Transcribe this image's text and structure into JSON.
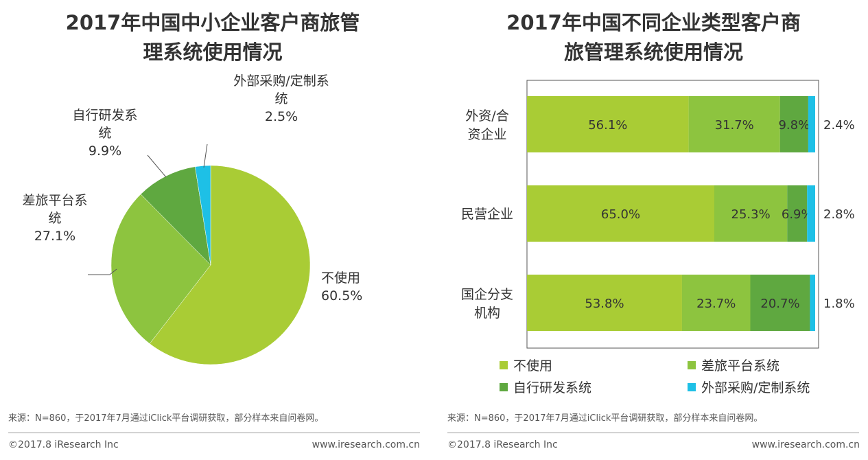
{
  "colors": {
    "not_used": "#a9cc35",
    "travel_platform": "#8dc43f",
    "self_developed": "#5fa840",
    "outsourced": "#1ec0e6"
  },
  "chart_data": [
    {
      "type": "pie",
      "title_lines": [
        "2017年中国中小企业客户商旅管",
        "理系统使用情况"
      ],
      "slices": [
        {
          "label": "不使用",
          "value": 60.5,
          "value_label": "60.5%",
          "label_lines": [
            "不使用"
          ],
          "color": "#a9cc35"
        },
        {
          "label": "差旅平台系统",
          "value": 27.1,
          "value_label": "27.1%",
          "label_lines": [
            "差旅平台系",
            "统"
          ],
          "color": "#8dc43f"
        },
        {
          "label": "自行研发系统",
          "value": 9.9,
          "value_label": "9.9%",
          "label_lines": [
            "自行研发系",
            "统"
          ],
          "color": "#5fa840"
        },
        {
          "label": "外部采购/定制系统",
          "value": 2.5,
          "value_label": "2.5%",
          "label_lines": [
            "外部采购/定制系",
            "统"
          ],
          "color": "#1ec0e6"
        }
      ]
    },
    {
      "type": "bar",
      "orientation": "horizontal",
      "stacked": true,
      "title_lines": [
        "2017年中国不同企业类型客户商",
        "旅管理系统使用情况"
      ],
      "categories": [
        "外资/合资企业",
        "民营企业",
        "国企分支机构"
      ],
      "category_lines": [
        [
          "外资/合",
          "资企业"
        ],
        [
          "民营企业"
        ],
        [
          "国企分支",
          "机构"
        ]
      ],
      "series": [
        {
          "name": "不使用",
          "values": [
            56.1,
            65.0,
            53.8
          ],
          "labels": [
            "56.1%",
            "65.0%",
            "53.8%"
          ],
          "color": "#a9cc35"
        },
        {
          "name": "差旅平台系统",
          "values": [
            31.7,
            25.3,
            23.7
          ],
          "labels": [
            "31.7%",
            "25.3%",
            "23.7%"
          ],
          "color": "#8dc43f"
        },
        {
          "name": "自行研发系统",
          "values": [
            9.8,
            6.9,
            20.7
          ],
          "labels": [
            "9.8%",
            "6.9%",
            "20.7%"
          ],
          "color": "#5fa840"
        },
        {
          "name": "外部采购/定制系统",
          "values": [
            2.4,
            2.8,
            1.8
          ],
          "labels": [
            "2.4%",
            "2.8%",
            "1.8%"
          ],
          "color": "#1ec0e6"
        }
      ],
      "xlim": [
        0,
        100
      ],
      "legend": {
        "position": "bottom",
        "items": [
          "不使用",
          "差旅平台系统",
          "自行研发系统",
          "外部采购/定制系统"
        ]
      }
    }
  ],
  "footer": {
    "source": "来源：N=860，于2017年7月通过iClick平台调研获取，部分样本来自问卷网。",
    "copyright": "©2017.8 iResearch Inc",
    "url": "www.iresearch.com.cn"
  }
}
